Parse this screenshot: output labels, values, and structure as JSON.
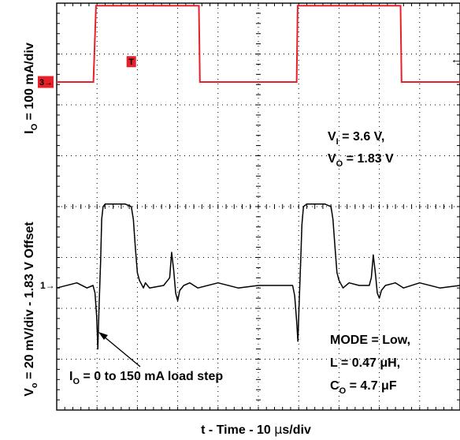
{
  "chart_data": {
    "type": "line",
    "title": "",
    "xlabel": {
      "main": "t - Time - 10 ",
      "mu": "μ",
      "unit": "s/div"
    },
    "ylabel_top": {
      "main": "I",
      "sub": "O",
      "rest": " = 100 mA/div"
    },
    "ylabel_bottom": {
      "main": "V",
      "sub": "o",
      "rest": " = 20 mV/div - 1.83 V Offset"
    },
    "x_divisions": 10,
    "y_divisions": 8,
    "grid": true,
    "channel_markers": [
      {
        "name": "channel-3-marker",
        "label": "3→",
        "color": "#e8202a",
        "div": 1.55
      },
      {
        "name": "channel-1-marker",
        "label": "1→",
        "color": "#000000",
        "div": 5.55
      }
    ],
    "trigger_marker": {
      "label": "T",
      "color": "#e8202a",
      "x_div": 1.85
    },
    "trigger_level_marker": {
      "label": "←",
      "color": "#e8202a",
      "div": 1.1
    },
    "series": [
      {
        "name": "I_O",
        "color": "#e8202a",
        "unit": "mA",
        "points": [
          [
            0,
            0
          ],
          [
            18.2,
            0
          ],
          [
            19.5,
            150
          ],
          [
            70.5,
            150
          ],
          [
            71,
            0
          ],
          [
            119,
            0
          ],
          [
            119.5,
            150
          ],
          [
            170.5,
            150
          ],
          [
            171,
            0
          ],
          [
            200,
            0
          ]
        ]
      },
      {
        "name": "V_O",
        "color": "#000000",
        "unit": "mV",
        "points": [
          [
            0,
            -1
          ],
          [
            10,
            1
          ],
          [
            15,
            -1
          ],
          [
            18,
            0
          ],
          [
            19,
            -3
          ],
          [
            19.8,
            -12
          ],
          [
            20.4,
            -25
          ],
          [
            21,
            -8
          ],
          [
            21.8,
            10
          ],
          [
            22.3,
            26
          ],
          [
            23,
            31
          ],
          [
            24,
            32
          ],
          [
            34,
            32
          ],
          [
            37,
            31
          ],
          [
            38,
            26
          ],
          [
            39,
            15
          ],
          [
            40,
            5
          ],
          [
            41,
            2
          ],
          [
            43,
            -1
          ],
          [
            44,
            1
          ],
          [
            46,
            -1
          ],
          [
            53,
            0
          ],
          [
            56,
            3
          ],
          [
            57,
            13
          ],
          [
            58,
            6
          ],
          [
            59,
            -3
          ],
          [
            60,
            -6
          ],
          [
            61,
            -2
          ],
          [
            63,
            0
          ],
          [
            66,
            1
          ],
          [
            70,
            -1
          ],
          [
            80,
            1
          ],
          [
            90,
            -1
          ],
          [
            100,
            0
          ],
          [
            110,
            0
          ],
          [
            117,
            0
          ],
          [
            118,
            -4
          ],
          [
            119,
            -14
          ],
          [
            119.6,
            -22
          ],
          [
            120.2,
            -8
          ],
          [
            121,
            10
          ],
          [
            121.6,
            24
          ],
          [
            122.4,
            31
          ],
          [
            124,
            32
          ],
          [
            133,
            32
          ],
          [
            136,
            31
          ],
          [
            137,
            26
          ],
          [
            138,
            15
          ],
          [
            139,
            5
          ],
          [
            140,
            2
          ],
          [
            142,
            -1
          ],
          [
            145,
            1
          ],
          [
            150,
            0
          ],
          [
            155,
            0
          ],
          [
            156,
            3
          ],
          [
            157,
            12
          ],
          [
            158,
            5
          ],
          [
            159,
            -3
          ],
          [
            160,
            -5
          ],
          [
            161,
            -2
          ],
          [
            163,
            0
          ],
          [
            168,
            1
          ],
          [
            172,
            -1
          ],
          [
            180,
            1
          ],
          [
            190,
            -1
          ],
          [
            200,
            0
          ]
        ]
      }
    ],
    "annotations": [
      {
        "name": "input-output-voltage-annotation",
        "lines": [
          {
            "main": "V",
            "sub": "I",
            "rest": " = 3.6 V,"
          },
          {
            "main": "V",
            "sub": "O",
            "rest": " = 1.83 V"
          }
        ]
      },
      {
        "name": "mode-annotation",
        "lines": [
          {
            "main": "MODE = Low,",
            "sub": "",
            "rest": ""
          },
          {
            "main": "L = 0.47 ",
            "sub": "",
            "rest": "μH,"
          },
          {
            "main": "C",
            "sub": "O",
            "rest": " = 4.7 μF"
          }
        ]
      },
      {
        "name": "load-step-annotation",
        "lines": [
          {
            "main": "I",
            "sub": "O",
            "rest": " = 0 to 150 mA load step"
          }
        ]
      }
    ]
  }
}
